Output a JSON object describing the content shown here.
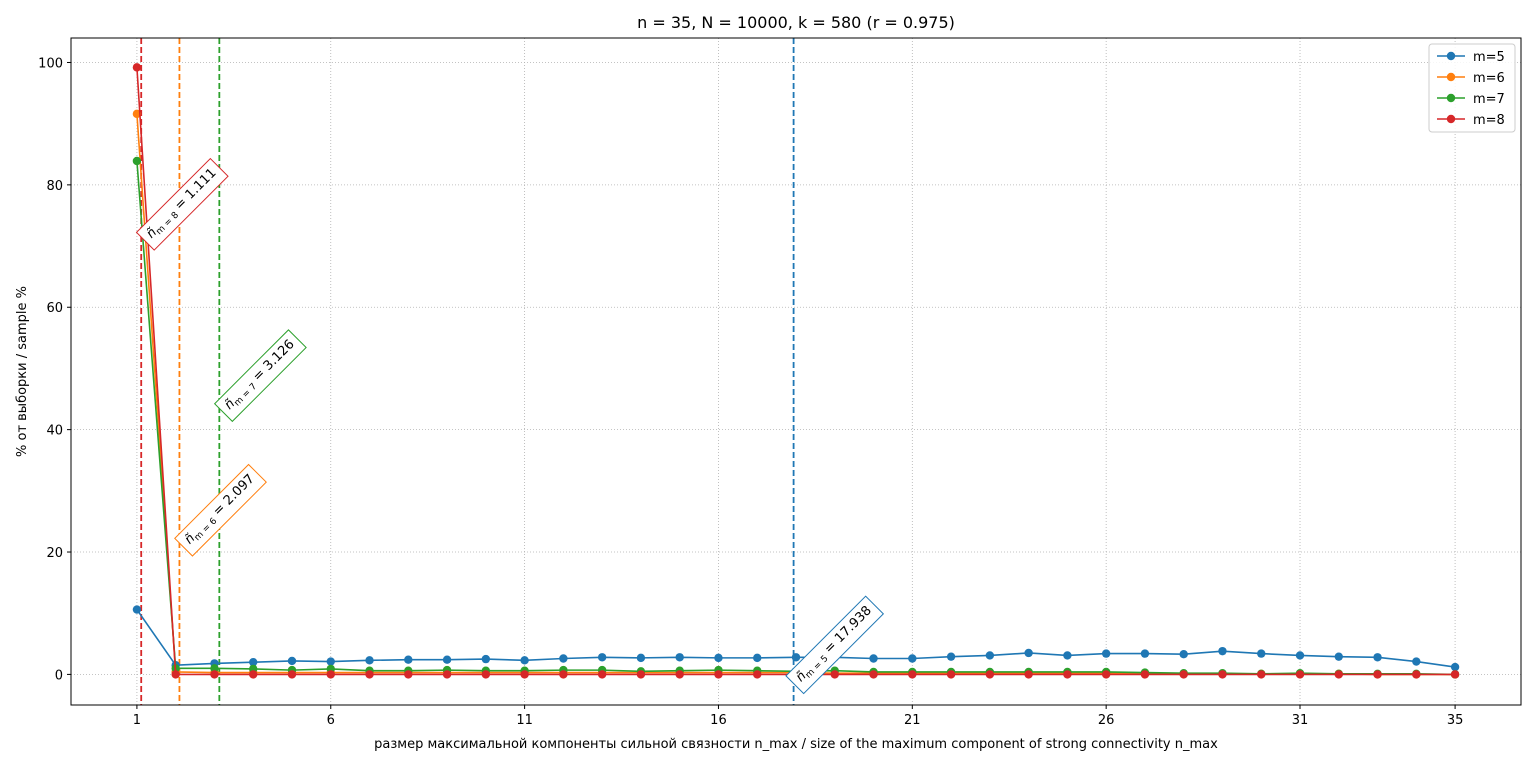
{
  "chart_data": {
    "type": "line",
    "title": "n = 35, N = 10000, k = 580 (r = 0.975)",
    "xlabel": "размер максимальной компоненты сильной связности n_max / size of the maximum component of strong connectivity n_max",
    "ylabel": "% от выборки / sample %",
    "xlim": [
      -0.7,
      36.7
    ],
    "ylim": [
      -5,
      104
    ],
    "xticks": [
      1,
      6,
      11,
      16,
      21,
      26,
      31,
      35
    ],
    "yticks": [
      0,
      20,
      40,
      60,
      80,
      100
    ],
    "grid": true,
    "legend_position": "top-right",
    "x": [
      1,
      2,
      3,
      4,
      5,
      6,
      7,
      8,
      9,
      10,
      11,
      12,
      13,
      14,
      15,
      16,
      17,
      18,
      19,
      20,
      21,
      22,
      23,
      24,
      25,
      26,
      27,
      28,
      29,
      30,
      31,
      32,
      33,
      34,
      35
    ],
    "series": [
      {
        "name": "m=5",
        "color": "#1f77b4",
        "values": [
          10.6,
          1.5,
          1.8,
          2.0,
          2.2,
          2.1,
          2.3,
          2.4,
          2.4,
          2.5,
          2.3,
          2.6,
          2.8,
          2.7,
          2.8,
          2.7,
          2.7,
          2.8,
          2.8,
          2.6,
          2.6,
          2.9,
          3.1,
          3.5,
          3.1,
          3.4,
          3.4,
          3.3,
          3.8,
          3.4,
          3.1,
          2.9,
          2.8,
          2.1,
          1.2
        ]
      },
      {
        "name": "m=6",
        "color": "#ff7f0e",
        "values": [
          91.6,
          0.4,
          0.3,
          0.3,
          0.3,
          0.3,
          0.3,
          0.3,
          0.3,
          0.3,
          0.3,
          0.3,
          0.3,
          0.3,
          0.3,
          0.3,
          0.3,
          0.3,
          0.2,
          0.2,
          0.2,
          0.2,
          0.2,
          0.2,
          0.2,
          0.2,
          0.1,
          0.1,
          0.1,
          0.1,
          0.1,
          0.1,
          0.0,
          0.0,
          0.0
        ]
      },
      {
        "name": "m=7",
        "color": "#2ca02c",
        "values": [
          83.9,
          1.0,
          1.0,
          0.9,
          0.7,
          0.9,
          0.6,
          0.6,
          0.7,
          0.6,
          0.6,
          0.7,
          0.7,
          0.5,
          0.6,
          0.7,
          0.6,
          0.5,
          0.6,
          0.4,
          0.4,
          0.4,
          0.4,
          0.4,
          0.4,
          0.4,
          0.3,
          0.2,
          0.2,
          0.1,
          0.2,
          0.1,
          0.1,
          0.1,
          0.0
        ]
      },
      {
        "name": "m=8",
        "color": "#d62728",
        "values": [
          99.2,
          0.0,
          0.0,
          0.0,
          0.0,
          0.0,
          0.0,
          0.0,
          0.0,
          0.0,
          0.0,
          0.0,
          0.0,
          0.0,
          0.0,
          0.0,
          0.0,
          0.0,
          0.0,
          0.0,
          0.0,
          0.0,
          0.0,
          0.0,
          0.0,
          0.0,
          0.0,
          0.0,
          0.0,
          0.0,
          0.0,
          0.0,
          0.0,
          0.0,
          0.0
        ]
      }
    ],
    "vlines": [
      {
        "m": 5,
        "x": 17.938,
        "color": "#1f77b4",
        "label_value": "17.938",
        "label_y": 5
      },
      {
        "m": 6,
        "x": 2.097,
        "color": "#ff7f0e",
        "label_value": "2.097",
        "label_y": 27
      },
      {
        "m": 7,
        "x": 3.126,
        "color": "#2ca02c",
        "label_value": "3.126",
        "label_y": 49
      },
      {
        "m": 8,
        "x": 1.111,
        "color": "#d62728",
        "label_value": "1.111",
        "label_y": 77
      }
    ]
  }
}
